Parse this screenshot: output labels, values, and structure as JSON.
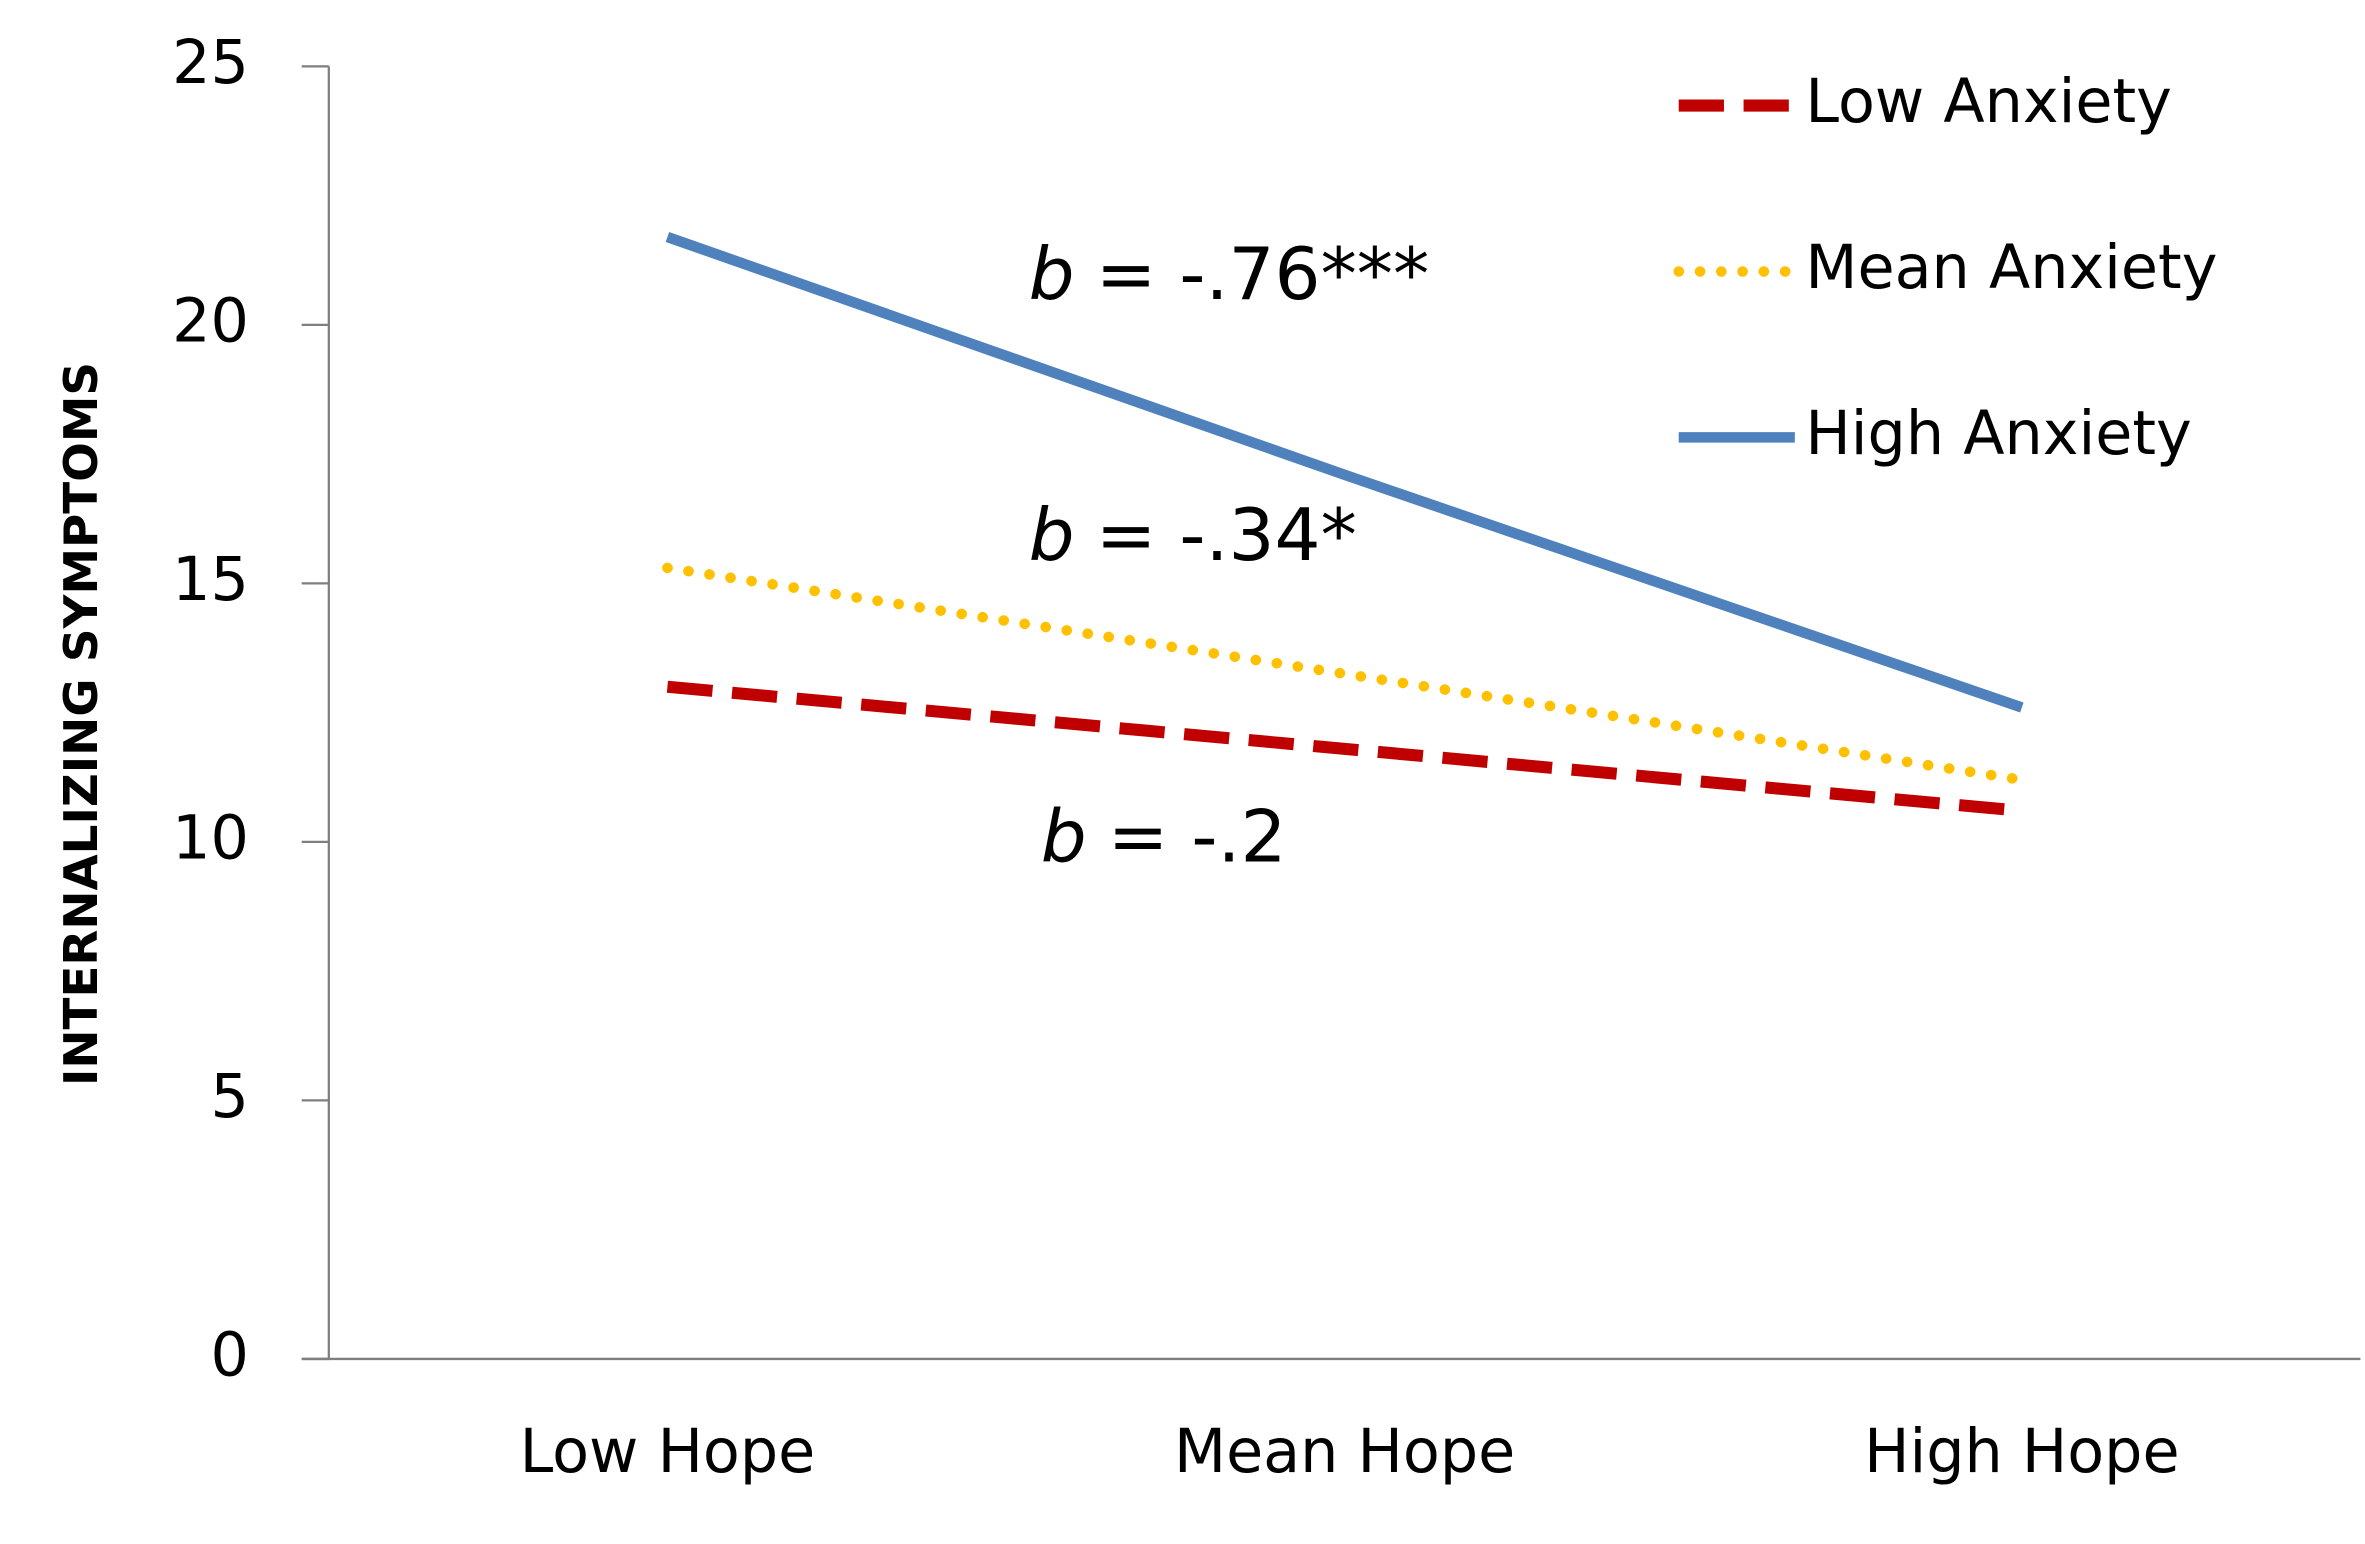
{
  "chart_data": {
    "type": "line",
    "y_label": "INTERNALIZING SYMPTOMS",
    "categories": [
      "Low Hope",
      "Mean Hope",
      "High Hope"
    ],
    "series": [
      {
        "name": "Low Anxiety",
        "color": "#c00000",
        "style": "dashed",
        "values": [
          13.0,
          11.8,
          10.6
        ]
      },
      {
        "name": "Mean Anxiety",
        "color": "#ffc000",
        "style": "dotted",
        "values": [
          15.3,
          13.25,
          11.2
        ]
      },
      {
        "name": "High Anxiety",
        "color": "#4f81bd",
        "style": "solid",
        "values": [
          21.7,
          17.1,
          12.6
        ]
      }
    ],
    "ylim": [
      0,
      25
    ],
    "yticks": [
      0,
      5,
      10,
      15,
      20,
      25
    ],
    "grid": false,
    "legend": "top-right",
    "annotations": [
      {
        "variable": "b",
        "text": "= -.76***"
      },
      {
        "variable": "b",
        "text": "= -.34*"
      },
      {
        "variable": "b",
        "text": "= -.2"
      }
    ]
  }
}
